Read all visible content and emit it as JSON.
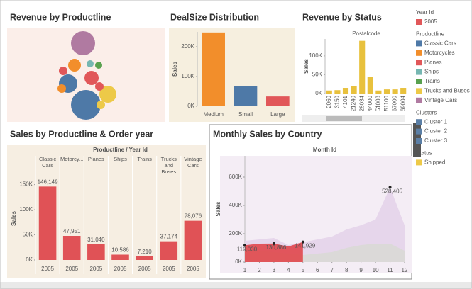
{
  "chart_data": [
    {
      "type": "bubble",
      "title": "Revenue by Productline",
      "values": [
        289000,
        441000,
        169000,
        144000,
        100000,
        81000,
        36000,
        25000,
        25000,
        36000,
        36000,
        36000
      ],
      "colors": [
        "#b07aa1",
        "#4e79a7",
        "#4e79a7",
        "#edc948",
        "#e15759",
        "#f28e2b",
        "#e15759",
        "#59a14f",
        "#76b7b2",
        "#f28e2b",
        "#e15759",
        "#edc948"
      ]
    },
    {
      "type": "bar",
      "title": "DealSize Distribution",
      "ylabel": "Sales",
      "categories": [
        "Medium",
        "Small",
        "Large"
      ],
      "values": [
        248000,
        67000,
        33000
      ],
      "colors": [
        "#f28e2b",
        "#4e79a7",
        "#e15759"
      ],
      "ylim": [
        0,
        250000
      ],
      "yticks": [
        {
          "value": 0,
          "label": "0K"
        },
        {
          "value": 100000,
          "label": "100K"
        },
        {
          "value": 200000,
          "label": "200K"
        }
      ]
    },
    {
      "type": "bar",
      "title": "Revenue by Status",
      "xlabel": "Postalcode",
      "ylabel": "Sales",
      "categories": [
        "2060",
        "3150",
        "4101",
        "21240",
        "28034",
        "44000",
        "51003",
        "51100",
        "67000",
        "69004"
      ],
      "values": [
        8000,
        9000,
        15000,
        19000,
        140000,
        45000,
        8000,
        11000,
        11000,
        15000
      ],
      "color": "#e8c13d",
      "ylim": [
        0,
        145000
      ],
      "yticks": [
        {
          "value": 0,
          "label": "0K"
        },
        {
          "value": 50000,
          "label": "50K"
        },
        {
          "value": 100000,
          "label": "100K"
        }
      ]
    },
    {
      "type": "bar",
      "title": "Sales by Productline & Order year",
      "header": "Productline / Year Id",
      "ylabel": "Sales",
      "categories": [
        "Classic Cars",
        "Motorcy...",
        "Planes",
        "Ships",
        "Trains",
        "Trucks and Buses",
        "Vintage Cars"
      ],
      "years": [
        "2005",
        "2005",
        "2005",
        "2005",
        "2005",
        "2005",
        "2005"
      ],
      "values": [
        146149,
        47951,
        31040,
        10586,
        7210,
        37174,
        78076
      ],
      "value_labels": [
        "146,149",
        "47,951",
        "31,040",
        "10,586",
        "7,210",
        "37,174",
        "78,076"
      ],
      "color": "#e05256",
      "ylim": [
        0,
        165000
      ],
      "yticks": [
        {
          "value": 0,
          "label": "0K"
        },
        {
          "value": 50000,
          "label": "50K"
        },
        {
          "value": 100000,
          "label": "100K"
        },
        {
          "value": 150000,
          "label": "150K"
        }
      ]
    },
    {
      "type": "area",
      "title": "Monthly Sales by Country",
      "header": "Month Id",
      "ylabel": "Sales",
      "x": [
        1,
        2,
        3,
        4,
        5,
        6,
        7,
        8,
        9,
        10,
        11,
        12
      ],
      "xlim": [
        1,
        12
      ],
      "xticks": [
        1,
        2,
        3,
        4,
        5,
        6,
        7,
        8,
        9,
        10,
        11,
        12
      ],
      "ylim": [
        0,
        750000
      ],
      "yticks": [
        {
          "value": 0,
          "label": "0K"
        },
        {
          "value": 200000,
          "label": "200K"
        },
        {
          "value": 400000,
          "label": "400K"
        },
        {
          "value": 600000,
          "label": "600K"
        }
      ],
      "series": [
        {
          "color": "#e4d3ea",
          "values": [
            150000,
            160000,
            170000,
            120000,
            140000,
            160000,
            180000,
            230000,
            260000,
            300000,
            528405,
            260000
          ],
          "value_labels": [
            null,
            null,
            null,
            null,
            null,
            null,
            null,
            null,
            null,
            null,
            "528,405",
            null
          ]
        },
        {
          "color": "#d9d9d6",
          "values": [
            90000,
            80000,
            70000,
            60000,
            50000,
            60000,
            70000,
            100000,
            120000,
            130000,
            130000,
            80000
          ]
        },
        {
          "color": "#e0474c",
          "values": [
            119030,
            129753,
            130886,
            110000,
            141929,
            null,
            null,
            null,
            null,
            null,
            null,
            null
          ],
          "value_labels": [
            "119,030",
            null,
            "130,886",
            null,
            "141,929",
            null,
            null,
            null,
            null,
            null,
            null,
            null
          ]
        }
      ]
    }
  ],
  "sidebar": [
    {
      "title": "Year Id",
      "items": [
        {
          "label": "2005",
          "color": "#e15759"
        }
      ]
    },
    {
      "title": "Productline",
      "items": [
        {
          "label": "Classic Cars",
          "color": "#4e79a7"
        },
        {
          "label": "Motorcycles",
          "color": "#f28e2b"
        },
        {
          "label": "Planes",
          "color": "#e15759"
        },
        {
          "label": "Ships",
          "color": "#76b7b2"
        },
        {
          "label": "Trains",
          "color": "#59a14f"
        },
        {
          "label": "Trucks and Buses",
          "color": "#edc948"
        },
        {
          "label": "Vintage Cars",
          "color": "#b07aa1"
        }
      ]
    },
    {
      "title": "Clusters",
      "items": [
        {
          "label": "Cluster 1",
          "color": "#5b7fa6"
        },
        {
          "label": "Cluster 2",
          "color": "#5b7fa6"
        },
        {
          "label": "Cluster 3",
          "color": "#5b7fa6"
        }
      ]
    },
    {
      "title": "Status",
      "items": [
        {
          "label": "Shipped",
          "color": "#edc948"
        }
      ]
    }
  ]
}
